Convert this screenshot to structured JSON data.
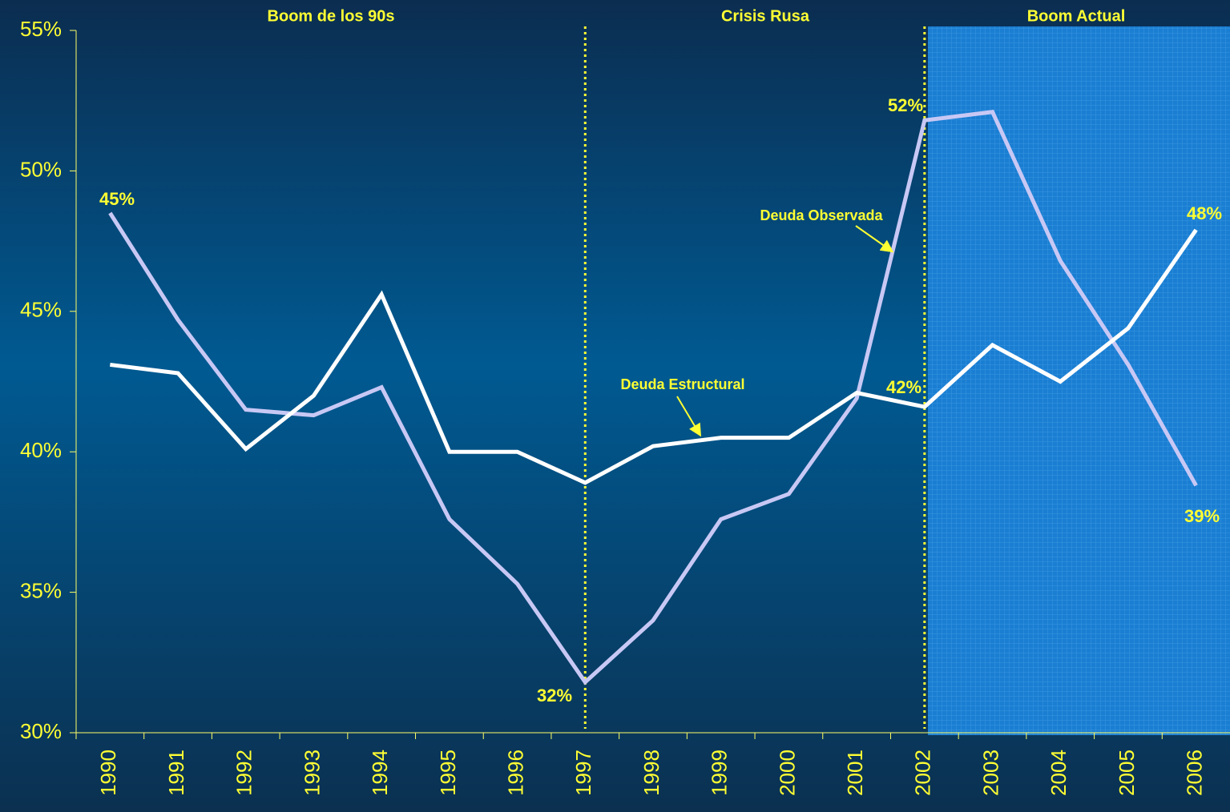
{
  "chart_data": {
    "type": "line",
    "categories": [
      "1990",
      "1991",
      "1992",
      "1993",
      "1994",
      "1995",
      "1996",
      "1997",
      "1998",
      "1999",
      "2000",
      "2001",
      "2002",
      "2003",
      "2004",
      "2005",
      "2006"
    ],
    "series": [
      {
        "name": "Deuda Observada",
        "color": "#c8c8f5",
        "values": [
          48.5,
          44.7,
          41.5,
          41.3,
          42.3,
          37.6,
          35.3,
          31.8,
          34.0,
          37.6,
          38.5,
          41.9,
          51.8,
          52.1,
          46.8,
          43.1,
          38.8
        ]
      },
      {
        "name": "Deuda Estructural",
        "color": "#ffffff",
        "values": [
          43.1,
          42.8,
          40.1,
          42.0,
          45.6,
          40.0,
          40.0,
          38.9,
          40.2,
          40.5,
          40.5,
          42.1,
          41.6,
          43.8,
          42.5,
          44.4,
          47.9
        ]
      }
    ],
    "periods": [
      "Boom de los 90s",
      "Crisis Rusa",
      "Boom Actual"
    ],
    "annotations": [
      "45%",
      "32%",
      "52%",
      "42%",
      "48%",
      "39%"
    ],
    "ylim": [
      30,
      55
    ],
    "yticks": [
      {
        "value": 30,
        "label": "30%"
      },
      {
        "value": 35,
        "label": "35%"
      },
      {
        "value": 40,
        "label": "40%"
      },
      {
        "value": 45,
        "label": "45%"
      },
      {
        "value": 50,
        "label": "50%"
      },
      {
        "value": 55,
        "label": "55%"
      }
    ]
  }
}
